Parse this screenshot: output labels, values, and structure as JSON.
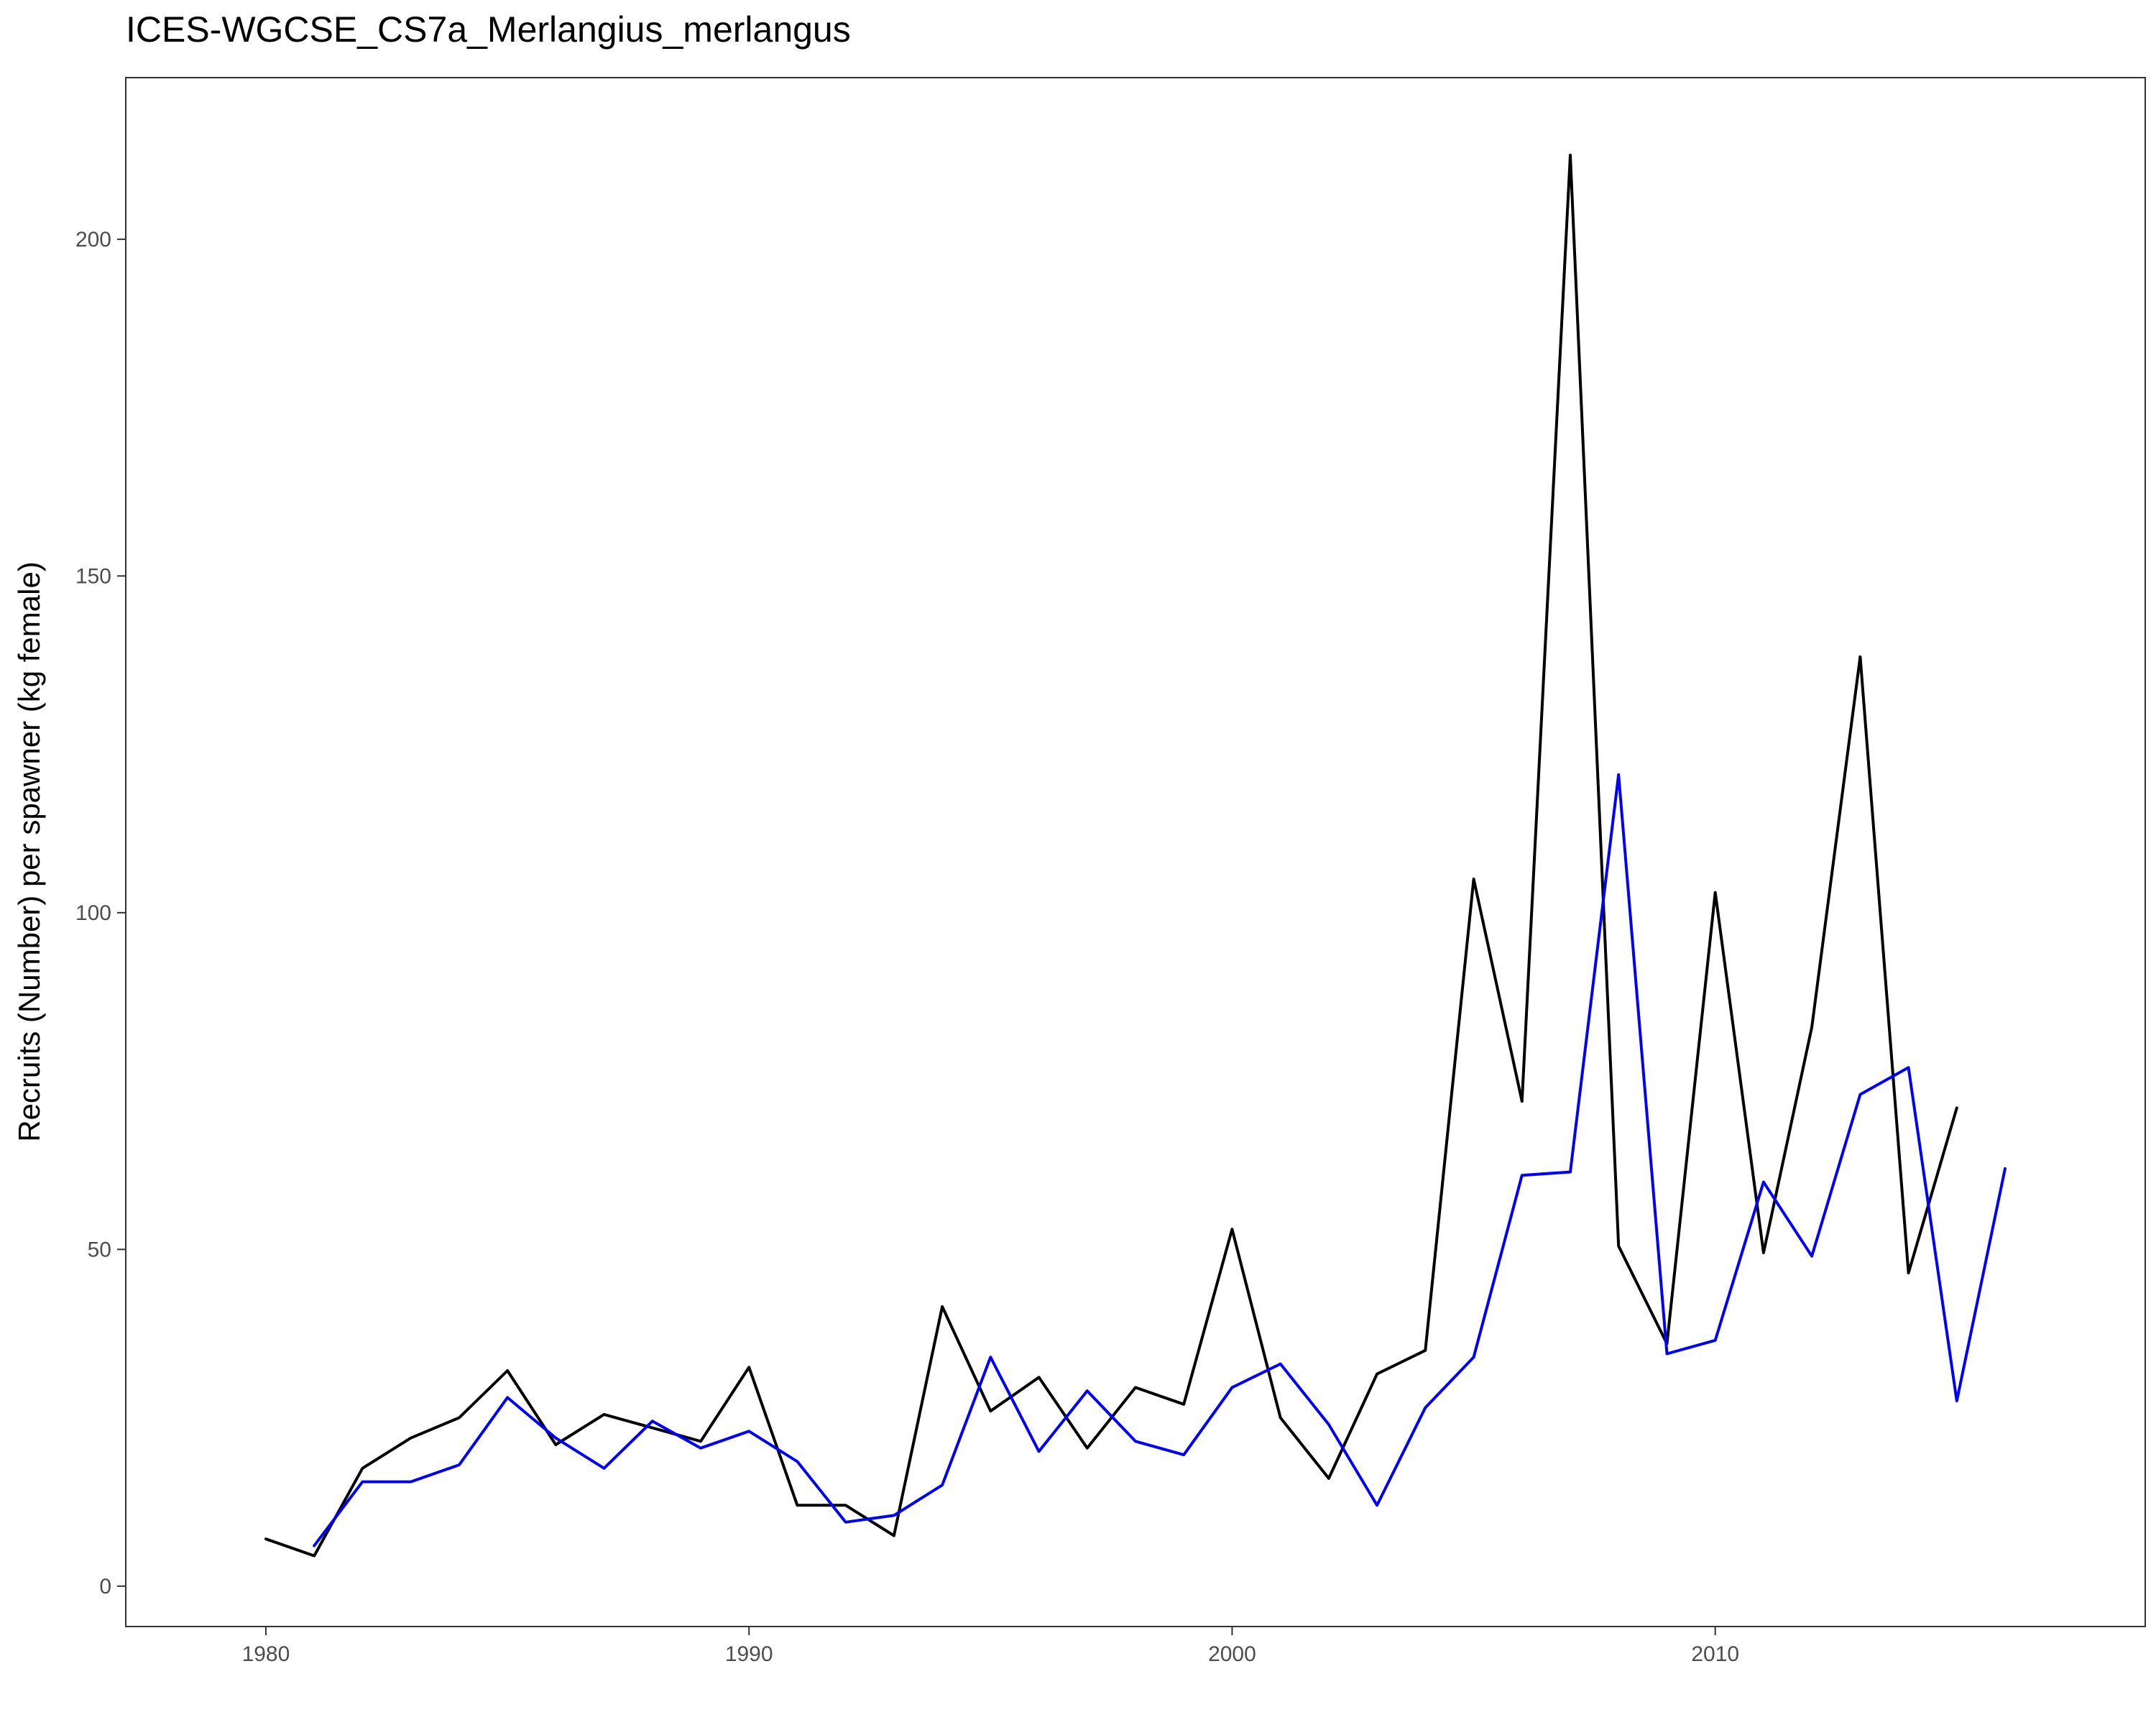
{
  "chart_data": {
    "type": "line",
    "title": "ICES-WGCSE_CS7a_Merlangius_merlangus",
    "xlabel": "",
    "ylabel": "Recruits (Number) per spawner (kg female)",
    "xlim": [
      1977.1,
      2018.9
    ],
    "ylim": [
      -6,
      224
    ],
    "xticks": [
      1980,
      1990,
      2000,
      2010
    ],
    "yticks": [
      0,
      50,
      100,
      150,
      200
    ],
    "grid": false,
    "legend": "none",
    "series": [
      {
        "color": "#000000",
        "x": [
          1980,
          1981,
          1982,
          1983,
          1984,
          1985,
          1986,
          1987,
          1988,
          1989,
          1990,
          1991,
          1992,
          1993,
          1994,
          1995,
          1996,
          1997,
          1998,
          1999,
          2000,
          2001,
          2002,
          2003,
          2004,
          2005,
          2006,
          2007,
          2008,
          2009,
          2010,
          2011,
          2012,
          2013,
          2014,
          2015
        ],
        "values": [
          7,
          4.5,
          17.5,
          22,
          25,
          32,
          21,
          25.5,
          23.5,
          21.5,
          32.5,
          12,
          12,
          7.5,
          41.5,
          26,
          31,
          20.5,
          29.5,
          27,
          53,
          25,
          16,
          31.5,
          35,
          105,
          72,
          212.5,
          50.5,
          36,
          103,
          49.5,
          83,
          138,
          46.5,
          71
        ]
      },
      {
        "color": "#0000ff",
        "x": [
          1981,
          1982,
          1983,
          1984,
          1985,
          1986,
          1987,
          1988,
          1989,
          1990,
          1991,
          1992,
          1993,
          1994,
          1995,
          1996,
          1997,
          1998,
          1999,
          2000,
          2001,
          2002,
          2003,
          2004,
          2005,
          2006,
          2007,
          2008,
          2009,
          2010,
          2011,
          2012,
          2013,
          2014,
          2015,
          2016
        ],
        "values": [
          6,
          15.5,
          15.5,
          18,
          28,
          22,
          17.5,
          24.5,
          20.5,
          23,
          18.5,
          9.5,
          10.5,
          15,
          34,
          20,
          29,
          21.5,
          19.5,
          29.5,
          33,
          24,
          12,
          26.5,
          34,
          61,
          61.5,
          120.5,
          34.5,
          36.5,
          60,
          49,
          73,
          77,
          27.5,
          62
        ]
      }
    ]
  }
}
